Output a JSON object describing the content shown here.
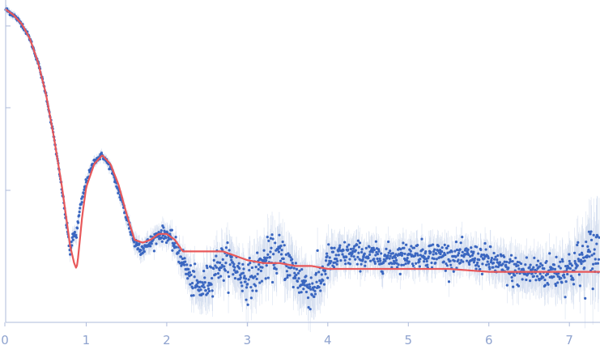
{
  "chart_data": {
    "type": "scatter",
    "title": "",
    "xlabel": "",
    "ylabel": "",
    "xlim": [
      0,
      7.37
    ],
    "ylim": [
      0,
      1.0
    ],
    "grid": false,
    "legend": "none",
    "x_ticks": [
      "0",
      "1",
      "2",
      "3",
      "4",
      "5",
      "6",
      "7"
    ],
    "y_ticks_labeled": false,
    "colors": {
      "points": "#3a66c0",
      "error_bars": "#b8c8e6",
      "fit": "#e8585a",
      "axis": "#aebbdb",
      "tick_label": "#8fa3cf"
    },
    "series": [
      {
        "role": "experimental-points",
        "x": [
          0.0,
          0.1,
          0.2,
          0.3,
          0.4,
          0.5,
          0.6,
          0.7,
          0.8,
          0.85,
          0.88,
          0.92,
          1.0,
          1.1,
          1.2,
          1.3,
          1.4,
          1.5,
          1.6,
          1.7,
          1.8,
          1.9,
          2.0,
          2.1,
          2.2,
          2.3,
          2.4,
          2.5,
          2.6,
          2.7,
          2.8,
          2.9,
          3.0,
          3.1,
          3.2,
          3.3,
          3.4,
          3.5,
          3.6,
          3.7,
          3.8,
          3.9,
          4.0,
          4.2,
          4.4,
          4.6,
          4.8,
          5.0,
          5.2,
          5.4,
          5.6,
          5.8,
          6.0,
          6.2,
          6.4,
          6.6,
          6.8,
          7.0,
          7.2,
          7.35
        ],
        "y": [
          0.99,
          0.97,
          0.94,
          0.89,
          0.81,
          0.7,
          0.55,
          0.37,
          0.16,
          0.22,
          0.22,
          0.3,
          0.4,
          0.47,
          0.49,
          0.45,
          0.37,
          0.28,
          0.19,
          0.17,
          0.19,
          0.22,
          0.22,
          0.18,
          0.13,
          0.06,
          0.03,
          0.05,
          0.11,
          0.12,
          0.12,
          0.09,
          0.06,
          0.08,
          0.12,
          0.14,
          0.15,
          0.12,
          0.08,
          0.05,
          0.03,
          0.06,
          0.12,
          0.15,
          0.15,
          0.14,
          0.14,
          0.15,
          0.15,
          0.15,
          0.14,
          0.14,
          0.13,
          0.1,
          0.09,
          0.09,
          0.09,
          0.1,
          0.13,
          0.16
        ],
        "jitter": [
          0.004,
          0.004,
          0.004,
          0.004,
          0.004,
          0.004,
          0.005,
          0.006,
          0.01,
          0.01,
          0.01,
          0.008,
          0.006,
          0.005,
          0.005,
          0.006,
          0.008,
          0.01,
          0.012,
          0.012,
          0.012,
          0.012,
          0.013,
          0.015,
          0.02,
          0.024,
          0.028,
          0.03,
          0.03,
          0.03,
          0.03,
          0.03,
          0.032,
          0.034,
          0.034,
          0.034,
          0.034,
          0.034,
          0.034,
          0.034,
          0.034,
          0.034,
          0.03,
          0.022,
          0.022,
          0.022,
          0.022,
          0.022,
          0.022,
          0.022,
          0.022,
          0.022,
          0.024,
          0.026,
          0.028,
          0.028,
          0.03,
          0.034,
          0.045,
          0.06
        ]
      },
      {
        "role": "fit",
        "x": [
          0.0,
          0.1,
          0.2,
          0.3,
          0.4,
          0.5,
          0.6,
          0.7,
          0.75,
          0.8,
          0.85,
          0.88,
          0.9,
          0.95,
          1.0,
          1.1,
          1.2,
          1.3,
          1.4,
          1.5,
          1.6,
          1.7,
          1.8,
          1.9,
          2.0,
          2.1,
          2.2,
          2.3,
          2.4,
          2.5,
          2.6,
          2.7,
          2.8,
          2.9,
          3.0,
          3.2,
          3.4,
          3.6,
          3.8,
          4.0,
          4.5,
          5.0,
          5.5,
          6.0,
          6.5,
          7.0,
          7.37
        ],
        "y": [
          0.99,
          0.97,
          0.94,
          0.89,
          0.81,
          0.7,
          0.55,
          0.38,
          0.28,
          0.18,
          0.12,
          0.1,
          0.14,
          0.28,
          0.38,
          0.46,
          0.49,
          0.46,
          0.39,
          0.29,
          0.2,
          0.19,
          0.2,
          0.22,
          0.22,
          0.2,
          0.16,
          0.16,
          0.16,
          0.16,
          0.16,
          0.16,
          0.15,
          0.14,
          0.13,
          0.12,
          0.12,
          0.11,
          0.11,
          0.1,
          0.1,
          0.1,
          0.1,
          0.09,
          0.09,
          0.09,
          0.09
        ]
      }
    ]
  }
}
